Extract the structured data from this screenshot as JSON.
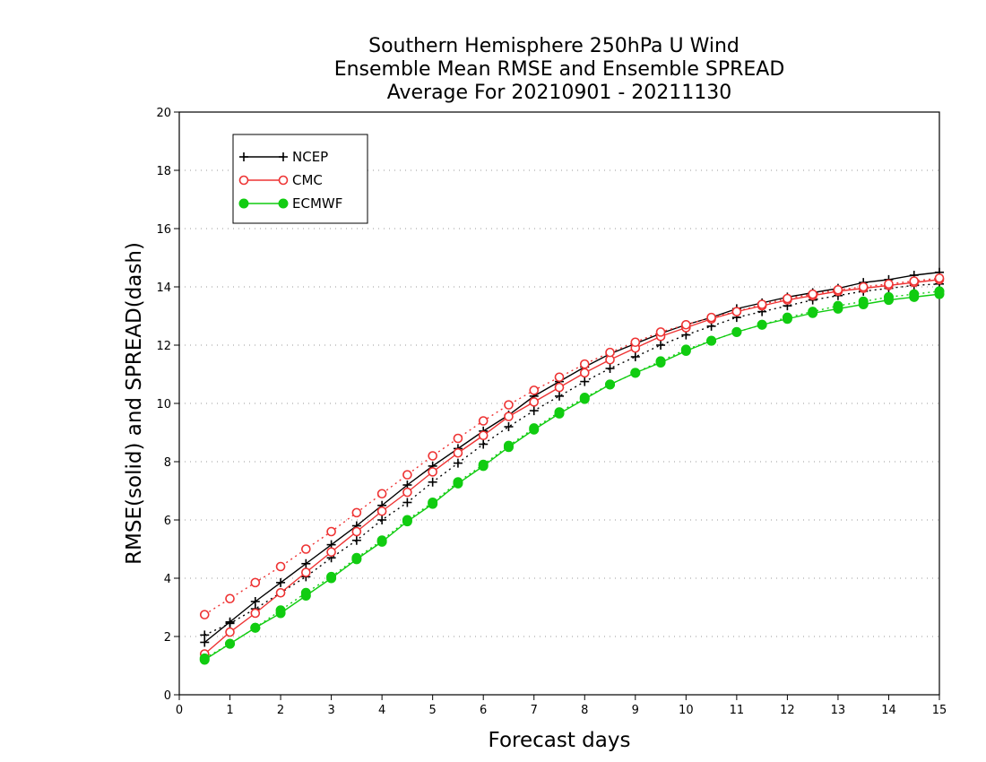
{
  "chart_data": {
    "type": "line",
    "title": [
      "Southern Hemisphere 250hPa U Wind",
      "Ensemble Mean RMSE and Ensemble SPREAD",
      "Average For 20210901 - 20211130"
    ],
    "xlabel": "Forecast days",
    "ylabel": "RMSE(solid) and SPREAD(dash)",
    "xlim": [
      0,
      15
    ],
    "ylim": [
      0,
      20
    ],
    "xticks": [
      0,
      1,
      2,
      3,
      4,
      5,
      6,
      7,
      8,
      9,
      10,
      11,
      12,
      13,
      14,
      15
    ],
    "yticks": [
      0,
      2,
      4,
      6,
      8,
      10,
      12,
      14,
      16,
      18,
      20
    ],
    "grid": true,
    "legend_position": "top-left",
    "x": [
      0.5,
      1,
      1.5,
      2,
      2.5,
      3,
      3.5,
      4,
      4.5,
      5,
      5.5,
      6,
      6.5,
      7,
      7.5,
      8,
      8.5,
      9,
      9.5,
      10,
      10.5,
      11,
      11.5,
      12,
      12.5,
      13,
      13.5,
      14,
      14.5,
      15
    ],
    "series": [
      {
        "name": "NCEP",
        "color": "#000000",
        "marker": "plus",
        "line": "solid",
        "values": [
          1.8,
          2.5,
          3.2,
          3.85,
          4.5,
          5.15,
          5.8,
          6.5,
          7.2,
          7.85,
          8.45,
          9.05,
          9.6,
          10.25,
          10.75,
          11.25,
          11.7,
          12.05,
          12.4,
          12.7,
          12.95,
          13.25,
          13.45,
          13.65,
          13.8,
          13.95,
          14.15,
          14.25,
          14.4,
          14.5
        ]
      },
      {
        "name": "NCEP",
        "color": "#000000",
        "marker": "plus",
        "line": "dash",
        "values": [
          2.05,
          2.45,
          2.95,
          3.5,
          4.05,
          4.7,
          5.3,
          6.0,
          6.6,
          7.3,
          7.95,
          8.6,
          9.2,
          9.75,
          10.25,
          10.75,
          11.2,
          11.6,
          12.0,
          12.35,
          12.65,
          12.95,
          13.15,
          13.35,
          13.55,
          13.7,
          13.85,
          13.95,
          14.05,
          14.1
        ]
      },
      {
        "name": "CMC",
        "color": "#ee3333",
        "marker": "circle",
        "line": "solid",
        "values": [
          1.4,
          2.15,
          2.8,
          3.5,
          4.2,
          4.9,
          5.6,
          6.3,
          6.95,
          7.65,
          8.3,
          8.9,
          9.55,
          10.05,
          10.55,
          11.05,
          11.5,
          11.9,
          12.3,
          12.6,
          12.9,
          13.15,
          13.35,
          13.55,
          13.7,
          13.85,
          13.95,
          14.05,
          14.15,
          14.25
        ]
      },
      {
        "name": "CMC",
        "color": "#ee3333",
        "marker": "circle",
        "line": "dash",
        "values": [
          2.75,
          3.3,
          3.85,
          4.4,
          5.0,
          5.6,
          6.25,
          6.9,
          7.55,
          8.2,
          8.8,
          9.4,
          9.95,
          10.45,
          10.9,
          11.35,
          11.75,
          12.1,
          12.45,
          12.7,
          12.95,
          13.15,
          13.4,
          13.6,
          13.75,
          13.9,
          14.0,
          14.1,
          14.2,
          14.3
        ]
      },
      {
        "name": "ECMWF",
        "color": "#11cc11",
        "marker": "dot",
        "line": "solid",
        "values": [
          1.2,
          1.75,
          2.3,
          2.8,
          3.4,
          4.0,
          4.65,
          5.25,
          5.95,
          6.55,
          7.25,
          7.85,
          8.5,
          9.1,
          9.65,
          10.15,
          10.65,
          11.05,
          11.4,
          11.8,
          12.15,
          12.45,
          12.7,
          12.9,
          13.1,
          13.25,
          13.4,
          13.55,
          13.65,
          13.75
        ]
      },
      {
        "name": "ECMWF",
        "color": "#11cc11",
        "marker": "dot",
        "line": "dash",
        "values": [
          1.25,
          1.75,
          2.3,
          2.9,
          3.5,
          4.05,
          4.7,
          5.3,
          6.0,
          6.6,
          7.3,
          7.9,
          8.55,
          9.15,
          9.7,
          10.2,
          10.65,
          11.05,
          11.45,
          11.85,
          12.15,
          12.45,
          12.7,
          12.95,
          13.15,
          13.35,
          13.5,
          13.65,
          13.75,
          13.85
        ]
      }
    ],
    "legend": [
      {
        "name": "NCEP",
        "color": "#000000",
        "marker": "plus"
      },
      {
        "name": "CMC",
        "color": "#ee3333",
        "marker": "circle"
      },
      {
        "name": "ECMWF",
        "color": "#11cc11",
        "marker": "dot"
      }
    ]
  }
}
